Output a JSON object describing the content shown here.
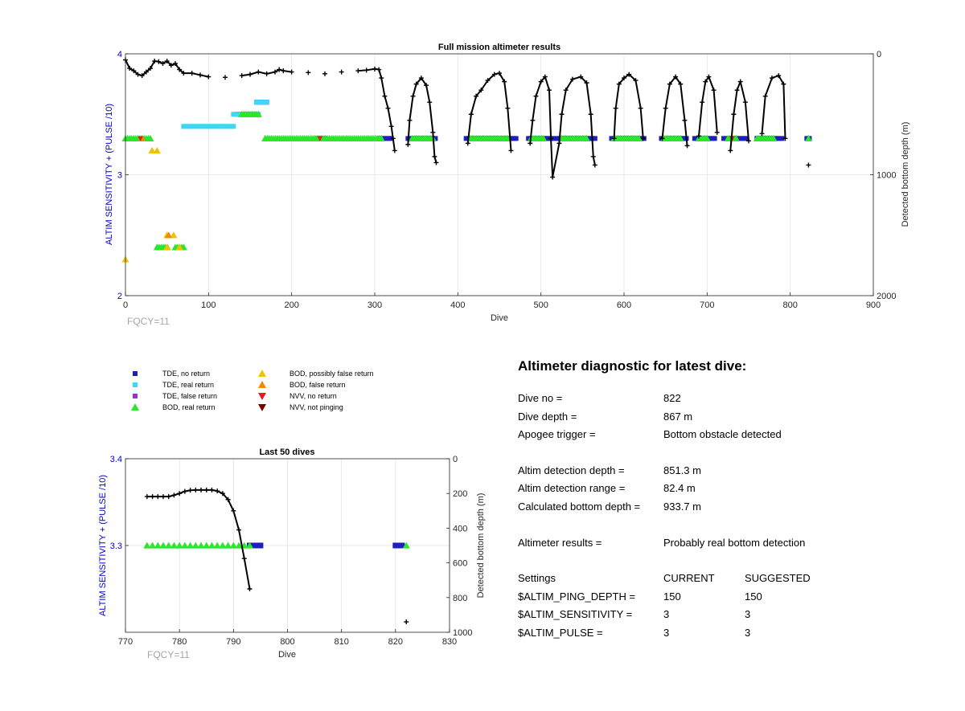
{
  "chart_data": [
    {
      "type": "scatter",
      "title": "Full mission altimeter results",
      "xlabel": "Dive",
      "ylabel": "ALTIM SENSITIVITY + (PULSE /10)",
      "y2label": "Detected bottom depth (m)",
      "xlim": [
        0,
        900
      ],
      "ylim": [
        2,
        4
      ],
      "y2lim": [
        0,
        2000
      ],
      "y2_reversed": true,
      "xticks": [
        "0",
        "100",
        "200",
        "300",
        "400",
        "500",
        "600",
        "700",
        "800",
        "900"
      ],
      "yticks": [
        "2",
        "3",
        "4"
      ],
      "y2ticks": [
        "0",
        "1000",
        "2000"
      ],
      "grid": true,
      "note": "FQCY=11",
      "tde_no_return": [
        {
          "x0": 305,
          "x1": 322,
          "y": 3.3
        },
        {
          "x0": 340,
          "x1": 375,
          "y": 3.3
        },
        {
          "x0": 410,
          "x1": 470,
          "y": 3.3
        },
        {
          "x0": 485,
          "x1": 515,
          "y": 3.3
        },
        {
          "x0": 520,
          "x1": 565,
          "y": 3.3
        },
        {
          "x0": 585,
          "x1": 625,
          "y": 3.3
        },
        {
          "x0": 645,
          "x1": 675,
          "y": 3.3
        },
        {
          "x0": 685,
          "x1": 710,
          "y": 3.3
        },
        {
          "x0": 720,
          "x1": 748,
          "y": 3.3
        },
        {
          "x0": 760,
          "x1": 790,
          "y": 3.3
        },
        {
          "x0": 158,
          "x1": 172,
          "y": 3.6
        },
        {
          "x0": 135,
          "x1": 150,
          "y": 3.5
        },
        {
          "x0": 230,
          "x1": 240,
          "y": 3.3
        },
        {
          "x0": 820,
          "x1": 823,
          "y": 3.3
        }
      ],
      "tde_real_return": [
        {
          "x0": 70,
          "x1": 132,
          "y": 3.4
        },
        {
          "x0": 130,
          "x1": 162,
          "y": 3.5
        },
        {
          "x0": 158,
          "x1": 172,
          "y": 3.6
        }
      ],
      "bod_real_return": [
        {
          "x0": 0,
          "x1": 32,
          "y": 3.3
        },
        {
          "x0": 168,
          "x1": 310,
          "y": 3.3
        },
        {
          "x0": 345,
          "x1": 372,
          "y": 3.3
        },
        {
          "x0": 415,
          "x1": 462,
          "y": 3.3
        },
        {
          "x0": 488,
          "x1": 505,
          "y": 3.3
        },
        {
          "x0": 525,
          "x1": 555,
          "y": 3.3
        },
        {
          "x0": 588,
          "x1": 620,
          "y": 3.3
        },
        {
          "x0": 648,
          "x1": 668,
          "y": 3.3
        },
        {
          "x0": 690,
          "x1": 700,
          "y": 3.3
        },
        {
          "x0": 725,
          "x1": 735,
          "y": 3.3
        },
        {
          "x0": 760,
          "x1": 782,
          "y": 3.3
        },
        {
          "x0": 822,
          "x1": 822,
          "y": 3.3
        },
        {
          "x0": 38,
          "x1": 52,
          "y": 2.4
        },
        {
          "x0": 60,
          "x1": 72,
          "y": 2.4
        },
        {
          "x0": 140,
          "x1": 160,
          "y": 3.5
        }
      ],
      "bod_possibly_false": [
        {
          "x": 0,
          "y": 2.3
        },
        {
          "x": 32,
          "y": 3.2
        },
        {
          "x": 38,
          "y": 3.2
        },
        {
          "x": 50,
          "y": 2.5
        },
        {
          "x": 58,
          "y": 2.5
        },
        {
          "x": 50,
          "y": 2.4
        },
        {
          "x": 65,
          "y": 2.4
        }
      ],
      "bod_false": [
        {
          "x": 20,
          "y": 3.3
        },
        {
          "x": 52,
          "y": 2.5
        }
      ],
      "nvv_no_return": [
        {
          "x": 18,
          "y": 3.3
        },
        {
          "x": 234,
          "y": 3.3
        },
        {
          "x": 730,
          "y": 3.3
        }
      ],
      "bottom_depth": [
        [
          0,
          50
        ],
        [
          5,
          120
        ],
        [
          10,
          140
        ],
        [
          15,
          170
        ],
        [
          20,
          180
        ],
        [
          25,
          150
        ],
        [
          30,
          120
        ],
        [
          35,
          60
        ],
        [
          40,
          65
        ],
        [
          45,
          80
        ],
        [
          50,
          60
        ],
        [
          55,
          95
        ],
        [
          60,
          80
        ],
        [
          65,
          130
        ],
        [
          70,
          160
        ],
        [
          80,
          160
        ],
        [
          90,
          175
        ],
        [
          100,
          190
        ],
        [
          120,
          195
        ],
        [
          140,
          180
        ],
        [
          150,
          170
        ],
        [
          160,
          150
        ],
        [
          170,
          165
        ],
        [
          180,
          150
        ],
        [
          185,
          130
        ],
        [
          190,
          140
        ],
        [
          200,
          150
        ],
        [
          220,
          155
        ],
        [
          240,
          165
        ],
        [
          260,
          150
        ],
        [
          280,
          140
        ],
        [
          290,
          135
        ],
        [
          300,
          125
        ],
        [
          305,
          130
        ],
        [
          308,
          200
        ],
        [
          312,
          350
        ],
        [
          316,
          450
        ],
        [
          320,
          600
        ],
        [
          322,
          700
        ],
        [
          324,
          800
        ],
        [
          340,
          750
        ],
        [
          342,
          550
        ],
        [
          346,
          350
        ],
        [
          350,
          250
        ],
        [
          356,
          200
        ],
        [
          362,
          260
        ],
        [
          366,
          400
        ],
        [
          370,
          650
        ],
        [
          372,
          850
        ],
        [
          374,
          900
        ],
        [
          412,
          740
        ],
        [
          416,
          500
        ],
        [
          422,
          350
        ],
        [
          428,
          300
        ],
        [
          436,
          220
        ],
        [
          444,
          170
        ],
        [
          450,
          160
        ],
        [
          456,
          230
        ],
        [
          460,
          450
        ],
        [
          464,
          800
        ],
        [
          487,
          740
        ],
        [
          490,
          550
        ],
        [
          494,
          350
        ],
        [
          500,
          230
        ],
        [
          505,
          190
        ],
        [
          510,
          300
        ],
        [
          512,
          700
        ],
        [
          514,
          1020
        ],
        [
          522,
          740
        ],
        [
          525,
          500
        ],
        [
          530,
          300
        ],
        [
          538,
          210
        ],
        [
          548,
          190
        ],
        [
          555,
          240
        ],
        [
          560,
          500
        ],
        [
          563,
          850
        ],
        [
          565,
          920
        ],
        [
          588,
          700
        ],
        [
          590,
          450
        ],
        [
          594,
          250
        ],
        [
          600,
          200
        ],
        [
          606,
          170
        ],
        [
          614,
          220
        ],
        [
          620,
          450
        ],
        [
          623,
          700
        ],
        [
          646,
          700
        ],
        [
          650,
          450
        ],
        [
          655,
          250
        ],
        [
          662,
          190
        ],
        [
          668,
          250
        ],
        [
          673,
          550
        ],
        [
          676,
          760
        ],
        [
          690,
          680
        ],
        [
          694,
          400
        ],
        [
          698,
          230
        ],
        [
          702,
          190
        ],
        [
          708,
          300
        ],
        [
          712,
          650
        ],
        [
          728,
          800
        ],
        [
          732,
          500
        ],
        [
          736,
          300
        ],
        [
          740,
          230
        ],
        [
          746,
          400
        ],
        [
          750,
          720
        ],
        [
          766,
          660
        ],
        [
          770,
          350
        ],
        [
          778,
          200
        ],
        [
          786,
          180
        ],
        [
          792,
          250
        ],
        [
          794,
          700
        ],
        [
          822,
          920
        ]
      ]
    },
    {
      "type": "scatter",
      "title": "Last 50 dives",
      "xlabel": "Dive",
      "ylabel": "ALTIM SENSITIVITY + (PULSE /10)",
      "y2label": "Detected bottom depth (m)",
      "xlim": [
        770,
        830
      ],
      "ylim": [
        3.2,
        3.4
      ],
      "y2lim": [
        0,
        1000
      ],
      "y2_reversed": true,
      "xticks": [
        "770",
        "780",
        "790",
        "800",
        "810",
        "820",
        "830"
      ],
      "yticks": [
        "3.3",
        "3.4"
      ],
      "y2ticks": [
        "0",
        "200",
        "400",
        "600",
        "800",
        "1000"
      ],
      "grid": true,
      "note": "FQCY=11",
      "bod_real_return": [
        774,
        775,
        776,
        777,
        778,
        779,
        780,
        781,
        782,
        783,
        784,
        785,
        786,
        787,
        788,
        789,
        790,
        791,
        792,
        793,
        822
      ],
      "tde_no_return": [
        [
          793,
          795
        ],
        [
          820,
          821.5
        ]
      ],
      "bottom_depth": [
        [
          774,
          218
        ],
        [
          775,
          218
        ],
        [
          776,
          218
        ],
        [
          777,
          218
        ],
        [
          778,
          218
        ],
        [
          779,
          210
        ],
        [
          780,
          200
        ],
        [
          781,
          188
        ],
        [
          782,
          182
        ],
        [
          783,
          180
        ],
        [
          784,
          180
        ],
        [
          785,
          180
        ],
        [
          786,
          180
        ],
        [
          787,
          186
        ],
        [
          788,
          200
        ],
        [
          789,
          235
        ],
        [
          790,
          300
        ],
        [
          791,
          410
        ],
        [
          792,
          575
        ],
        [
          793,
          750
        ],
        [
          822,
          940
        ]
      ],
      "y_value": 3.3
    }
  ],
  "legend": [
    {
      "label": "TDE, no return",
      "symbol": "square",
      "color": "#1f1fbf"
    },
    {
      "label": "TDE, real return",
      "symbol": "square",
      "color": "#3fd7f5"
    },
    {
      "label": "TDE, false return",
      "symbol": "square",
      "color": "#9b30d6"
    },
    {
      "label": "BOD, real return",
      "symbol": "triangle-up",
      "color": "#2be62b"
    },
    {
      "label": "BOD, possibly false return",
      "symbol": "triangle-up",
      "color": "#f2c200"
    },
    {
      "label": "BOD, false return",
      "symbol": "triangle-up",
      "color": "#f28a00"
    },
    {
      "label": "NVV, no return",
      "symbol": "triangle-down",
      "color": "#e02020"
    },
    {
      "label": "NVV, not pinging",
      "symbol": "triangle-down",
      "color": "#7a0000"
    }
  ],
  "diagnostic": {
    "title": "Altimeter diagnostic for latest dive:",
    "dive_no_label": "Dive no =",
    "dive_no": "822",
    "dive_depth_label": "Dive depth =",
    "dive_depth": "867 m",
    "apogee_label": "Apogee trigger =",
    "apogee": "Bottom obstacle detected",
    "det_depth_label": "Altim detection depth =",
    "det_depth": "851.3 m",
    "det_range_label": "Altim detection range =",
    "det_range": "82.4 m",
    "calc_depth_label": "Calculated bottom depth =",
    "calc_depth": "933.7 m",
    "results_label": "Altimeter results =",
    "results": "Probably real bottom detection",
    "settings_label": "Settings",
    "current_label": "CURRENT",
    "suggested_label": "SUGGESTED",
    "ping_label": "$ALTIM_PING_DEPTH =",
    "ping_current": "150",
    "ping_suggested": "150",
    "sens_label": "$ALTIM_SENSITIVITY =",
    "sens_current": "3",
    "sens_suggested": "3",
    "pulse_label": "$ALTIM_PULSE =",
    "pulse_current": "3",
    "pulse_suggested": "3"
  },
  "colors": {
    "tde_no_return": "#1f1fbf",
    "tde_real_return": "#3fd7f5",
    "tde_false_return": "#9b30d6",
    "bod_real_return": "#2be62b",
    "bod_possibly_false": "#f2c200",
    "bod_false": "#f28a00",
    "nvv_no_return": "#e02020",
    "nvv_not_pinging": "#7a0000",
    "depth_line": "#000000",
    "axis_left": "#0000cc",
    "fqcy": "#a6a6a6"
  }
}
